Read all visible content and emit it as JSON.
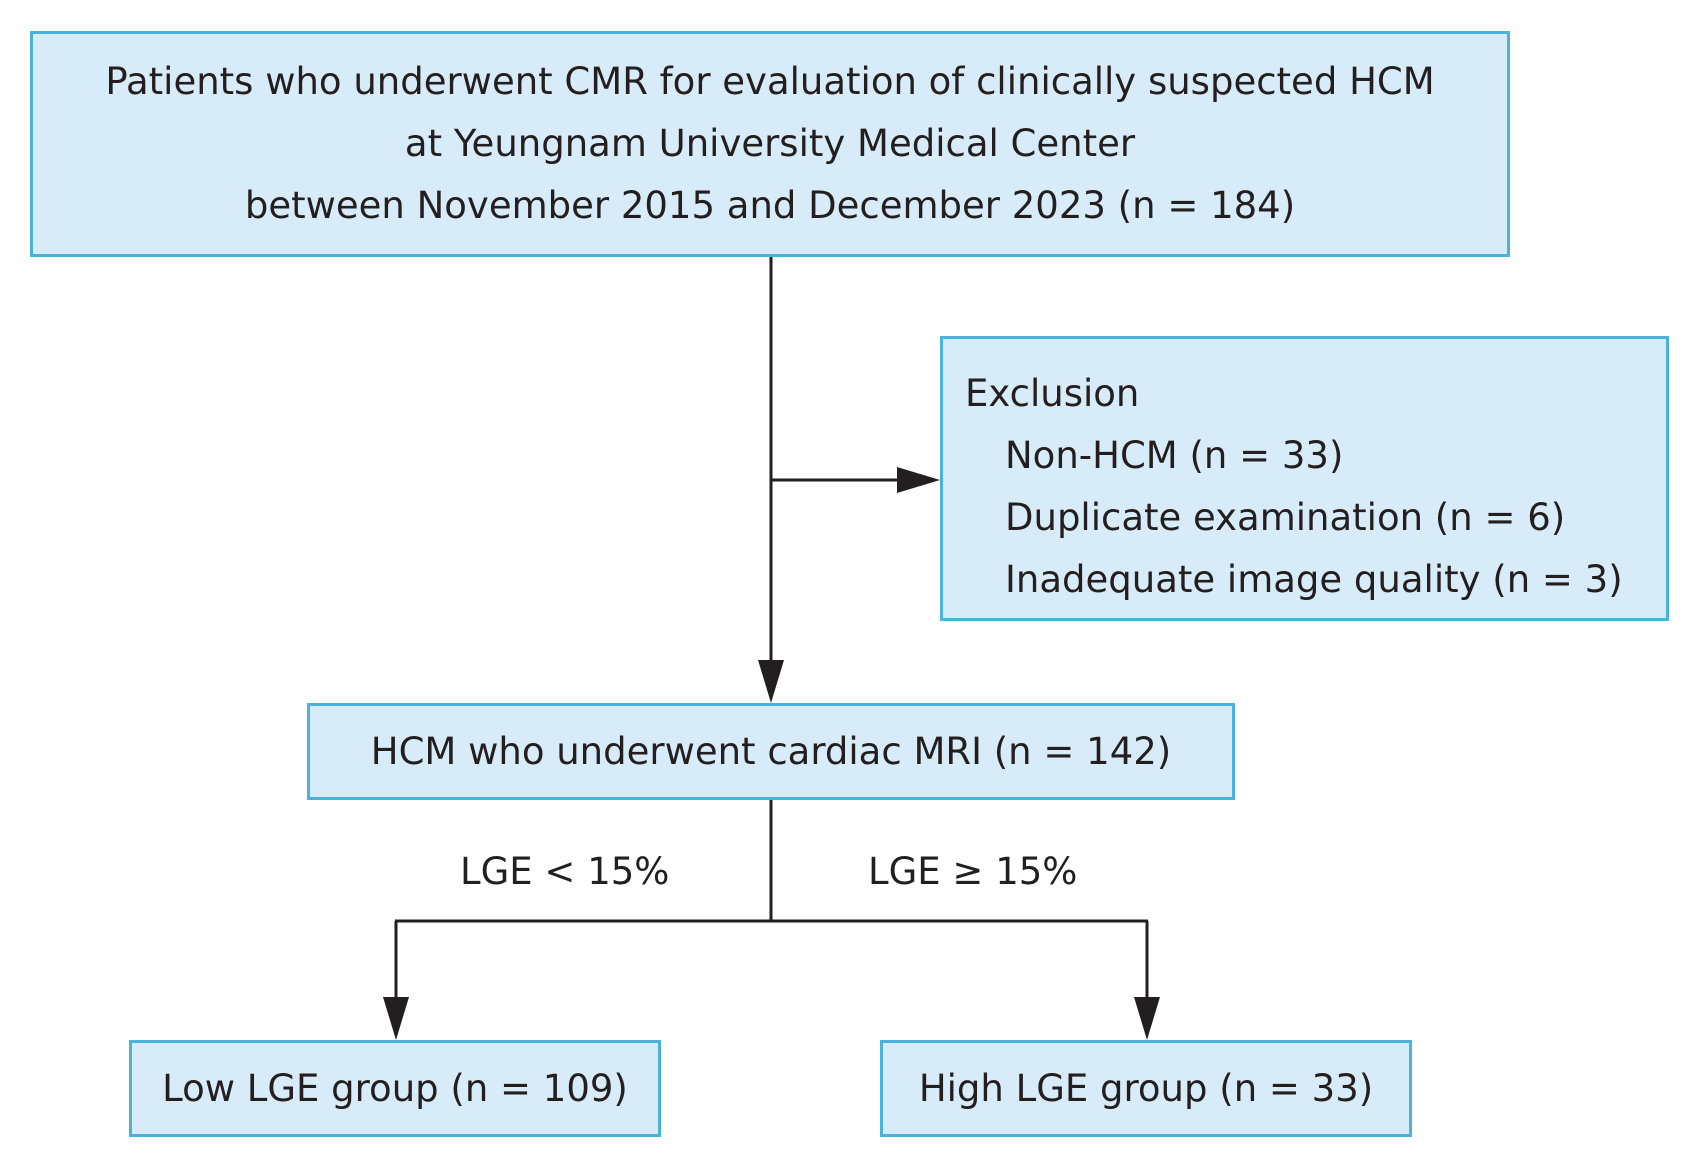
{
  "top_box": {
    "lines": [
      "Patients who underwent CMR for evaluation of clinically suspected HCM",
      "at Yeungnam University Medical Center",
      "between November 2015 and December 2023 (n = 184)"
    ]
  },
  "exclusion_box": {
    "heading": "Exclusion",
    "items": [
      "Non-HCM (n = 33)",
      "Duplicate examination (n = 6)",
      "Inadequate image quality (n = 3)"
    ]
  },
  "hcm_box": {
    "label": "HCM who underwent cardiac MRI (n = 142)"
  },
  "branches": {
    "low_criterion": "LGE < 15%",
    "high_criterion": "LGE ≥ 15%"
  },
  "low_group_box": {
    "label": "Low LGE group (n = 109)"
  },
  "high_group_box": {
    "label": "High LGE group (n = 33)"
  },
  "colors": {
    "box_fill": "#d7ecf8",
    "box_border": "#49b2dd",
    "line": "#231f20"
  }
}
